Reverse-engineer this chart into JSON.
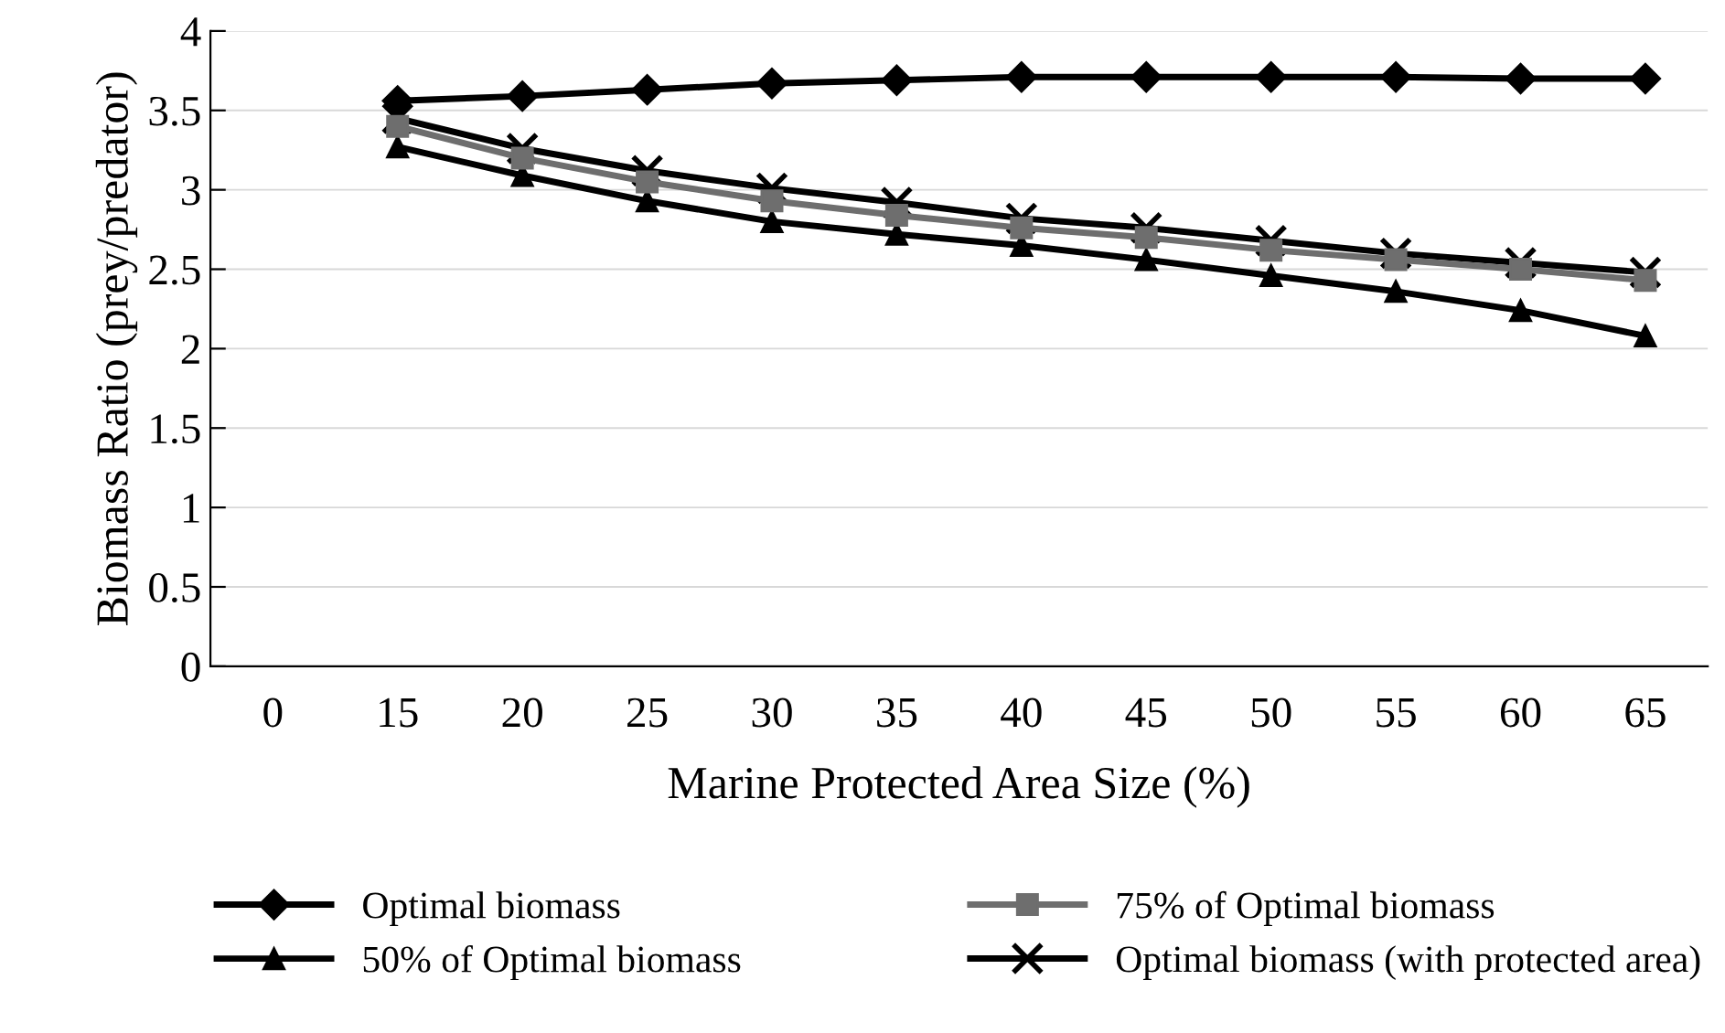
{
  "chart_data": {
    "type": "line",
    "xlabel": "Marine Protected Area Size (%)",
    "ylabel": "Biomass Ratio (prey/predator)",
    "categories": [
      "0",
      "15",
      "20",
      "25",
      "30",
      "35",
      "40",
      "45",
      "50",
      "55",
      "60",
      "65"
    ],
    "ylim": [
      0,
      4
    ],
    "yticks": [
      0,
      0.5,
      1,
      1.5,
      2,
      2.5,
      3,
      3.5,
      4
    ],
    "grid": "y",
    "legend": "bottom",
    "series": [
      {
        "name": "Optimal biomass",
        "color": "#000000",
        "marker": "diamond",
        "values": [
          null,
          3.56,
          3.59,
          3.63,
          3.67,
          3.69,
          3.71,
          3.71,
          3.71,
          3.71,
          3.7,
          3.7
        ]
      },
      {
        "name": "75% of Optimal biomass",
        "color": "#6e6e6e",
        "marker": "square",
        "values": [
          null,
          3.4,
          3.2,
          3.05,
          2.93,
          2.84,
          2.76,
          2.7,
          2.62,
          2.56,
          2.5,
          2.43
        ]
      },
      {
        "name": "50% of Optimal biomass",
        "color": "#000000",
        "marker": "triangle",
        "values": [
          null,
          3.27,
          3.09,
          2.93,
          2.8,
          2.72,
          2.65,
          2.56,
          2.46,
          2.36,
          2.24,
          2.08
        ]
      },
      {
        "name": "Optimal biomass (with protected area)",
        "color": "#000000",
        "marker": "cross",
        "values": [
          null,
          3.45,
          3.26,
          3.12,
          3.01,
          2.92,
          2.82,
          2.76,
          2.68,
          2.6,
          2.54,
          2.48
        ]
      }
    ]
  }
}
